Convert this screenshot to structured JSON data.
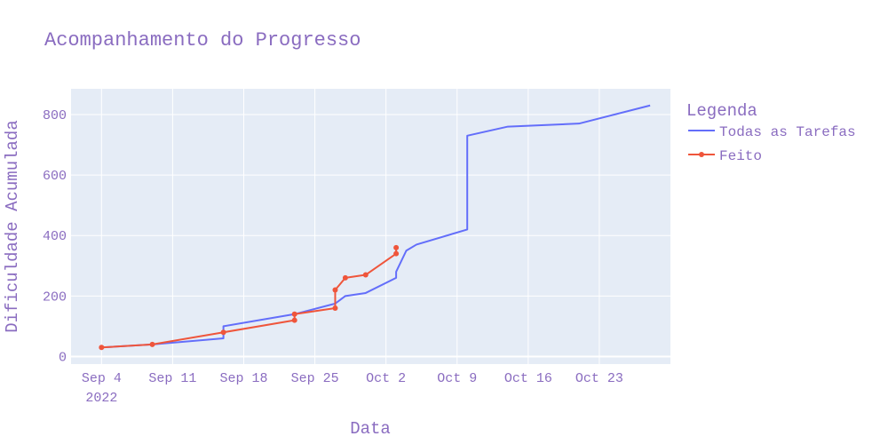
{
  "chart_data": {
    "type": "line",
    "title": "Acompanhamento do Progresso",
    "xlabel": "Data",
    "ylabel": "Dificuldade Acumulada",
    "x_range": [
      "2022-09-01",
      "2022-10-30"
    ],
    "ylim": [
      -25,
      885
    ],
    "x_ticks": [
      {
        "date": "2022-09-04",
        "label": "Sep 4",
        "sublabel": "2022"
      },
      {
        "date": "2022-09-11",
        "label": "Sep 11"
      },
      {
        "date": "2022-09-18",
        "label": "Sep 18"
      },
      {
        "date": "2022-09-25",
        "label": "Sep 25"
      },
      {
        "date": "2022-10-02",
        "label": "Oct 2"
      },
      {
        "date": "2022-10-09",
        "label": "Oct 9"
      },
      {
        "date": "2022-10-16",
        "label": "Oct 16"
      },
      {
        "date": "2022-10-23",
        "label": "Oct 23"
      }
    ],
    "y_ticks": [
      0,
      200,
      400,
      600,
      800
    ],
    "grid": true,
    "legend": {
      "title": "Legenda",
      "position": "right"
    },
    "colors": {
      "plot_bg": "#e5ecf6",
      "grid": "#ffffff",
      "text": "#8a6cc0"
    },
    "series": [
      {
        "name": "Todas as Tarefas",
        "color": "#636efa",
        "mode": "lines",
        "points": [
          [
            "2022-09-04",
            30
          ],
          [
            "2022-09-09",
            40
          ],
          [
            "2022-09-16",
            60
          ],
          [
            "2022-09-16",
            100
          ],
          [
            "2022-09-23",
            140
          ],
          [
            "2022-09-27",
            175
          ],
          [
            "2022-09-28",
            200
          ],
          [
            "2022-09-30",
            210
          ],
          [
            "2022-10-03",
            260
          ],
          [
            "2022-10-03",
            280
          ],
          [
            "2022-10-04",
            350
          ],
          [
            "2022-10-05",
            370
          ],
          [
            "2022-10-10",
            420
          ],
          [
            "2022-10-10",
            730
          ],
          [
            "2022-10-14",
            760
          ],
          [
            "2022-10-21",
            770
          ],
          [
            "2022-10-28",
            830
          ]
        ]
      },
      {
        "name": "Feito",
        "color": "#ef553b",
        "mode": "lines+markers",
        "points": [
          [
            "2022-09-04",
            30
          ],
          [
            "2022-09-09",
            40
          ],
          [
            "2022-09-16",
            80
          ],
          [
            "2022-09-23",
            120
          ],
          [
            "2022-09-23",
            140
          ],
          [
            "2022-09-27",
            160
          ],
          [
            "2022-09-27",
            220
          ],
          [
            "2022-09-28",
            260
          ],
          [
            "2022-09-30",
            270
          ],
          [
            "2022-10-03",
            340
          ],
          [
            "2022-10-03",
            360
          ]
        ]
      }
    ]
  }
}
